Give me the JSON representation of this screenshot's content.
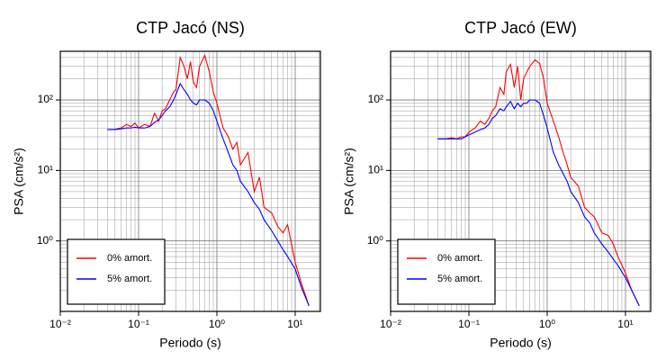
{
  "chart_data": [
    {
      "type": "line",
      "title": "CTP Jacó (NS)",
      "x_label": "Periodo (s)",
      "y_label": "PSA (cm/s²)",
      "log_x": true,
      "log_y": true,
      "grid": true,
      "legend": "lower left",
      "xlim": [
        0.01,
        21
      ],
      "ylim": [
        0.1,
        490
      ],
      "xticks": [
        {
          "value": 0.01,
          "label": "10⁻²"
        },
        {
          "value": 0.1,
          "label": "10⁻¹"
        },
        {
          "value": 1,
          "label": "10⁰"
        },
        {
          "value": 10,
          "label": "10¹"
        }
      ],
      "yticks": [
        {
          "value": 1,
          "label": "10⁰"
        },
        {
          "value": 10,
          "label": "10¹"
        },
        {
          "value": 100,
          "label": "10²"
        }
      ],
      "x": [
        0.04,
        0.05,
        0.06,
        0.07,
        0.08,
        0.09,
        0.1,
        0.12,
        0.14,
        0.16,
        0.18,
        0.2,
        0.22,
        0.25,
        0.28,
        0.3,
        0.34,
        0.38,
        0.42,
        0.46,
        0.5,
        0.55,
        0.6,
        0.7,
        0.8,
        0.9,
        1.0,
        1.2,
        1.4,
        1.6,
        1.8,
        2.0,
        2.5,
        3.0,
        3.5,
        4,
        5,
        6,
        7,
        8,
        10,
        12,
        15
      ],
      "series": [
        {
          "name": "0% amort.",
          "color": "#ff0000",
          "values": [
            38,
            38,
            40,
            45,
            42,
            47,
            40,
            45,
            42,
            65,
            50,
            70,
            75,
            100,
            130,
            140,
            400,
            300,
            200,
            350,
            180,
            150,
            300,
            430,
            250,
            130,
            90,
            40,
            30,
            20,
            25,
            12,
            18,
            5,
            8,
            3,
            2.5,
            1.6,
            1.3,
            1.7,
            0.5,
            0.25,
            0.12
          ]
        },
        {
          "name": "5% amort.",
          "color": "#0000ff",
          "values": [
            38,
            38,
            39,
            40,
            40,
            41,
            40,
            40,
            42,
            48,
            52,
            60,
            70,
            80,
            100,
            120,
            170,
            140,
            120,
            100,
            90,
            85,
            100,
            100,
            90,
            70,
            50,
            28,
            18,
            12,
            10,
            7,
            5,
            3.5,
            2.8,
            2,
            1.4,
            1,
            0.75,
            0.6,
            0.4,
            0.22,
            0.12
          ]
        }
      ]
    },
    {
      "type": "line",
      "title": "CTP Jacó (EW)",
      "x_label": "Periodo (s)",
      "y_label": "PSA (cm/s²)",
      "log_x": true,
      "log_y": true,
      "grid": true,
      "legend": "lower left",
      "xlim": [
        0.01,
        21
      ],
      "ylim": [
        0.1,
        490
      ],
      "xticks": [
        {
          "value": 0.01,
          "label": "10⁻²"
        },
        {
          "value": 0.1,
          "label": "10⁻¹"
        },
        {
          "value": 1,
          "label": "10⁰"
        },
        {
          "value": 10,
          "label": "10¹"
        }
      ],
      "yticks": [
        {
          "value": 1,
          "label": "10⁰"
        },
        {
          "value": 10,
          "label": "10¹"
        },
        {
          "value": 100,
          "label": "10²"
        }
      ],
      "x": [
        0.04,
        0.05,
        0.06,
        0.07,
        0.08,
        0.09,
        0.1,
        0.12,
        0.14,
        0.16,
        0.18,
        0.2,
        0.22,
        0.25,
        0.28,
        0.3,
        0.34,
        0.38,
        0.42,
        0.46,
        0.5,
        0.55,
        0.6,
        0.7,
        0.8,
        0.9,
        1.0,
        1.2,
        1.4,
        1.6,
        1.8,
        2.0,
        2.5,
        3.0,
        3.5,
        4,
        5,
        6,
        7,
        8,
        10,
        12,
        15
      ],
      "series": [
        {
          "name": "0% amort.",
          "color": "#ff0000",
          "values": [
            28,
            28,
            29,
            28,
            30,
            30,
            35,
            40,
            50,
            45,
            55,
            70,
            80,
            150,
            120,
            250,
            320,
            150,
            300,
            100,
            200,
            250,
            300,
            370,
            330,
            200,
            90,
            50,
            30,
            18,
            12,
            8,
            6,
            3,
            2.5,
            2.2,
            1.3,
            1.2,
            0.9,
            0.6,
            0.35,
            0.2,
            0.12
          ]
        },
        {
          "name": "5% amort.",
          "color": "#0000ff",
          "values": [
            28,
            28,
            28,
            28,
            28,
            30,
            32,
            35,
            38,
            40,
            45,
            55,
            60,
            75,
            70,
            80,
            95,
            75,
            90,
            80,
            90,
            90,
            100,
            100,
            90,
            60,
            40,
            18,
            12,
            9,
            7,
            5,
            3.5,
            2.2,
            1.8,
            1.3,
            0.9,
            0.7,
            0.55,
            0.45,
            0.3,
            0.2,
            0.12
          ]
        }
      ]
    }
  ]
}
